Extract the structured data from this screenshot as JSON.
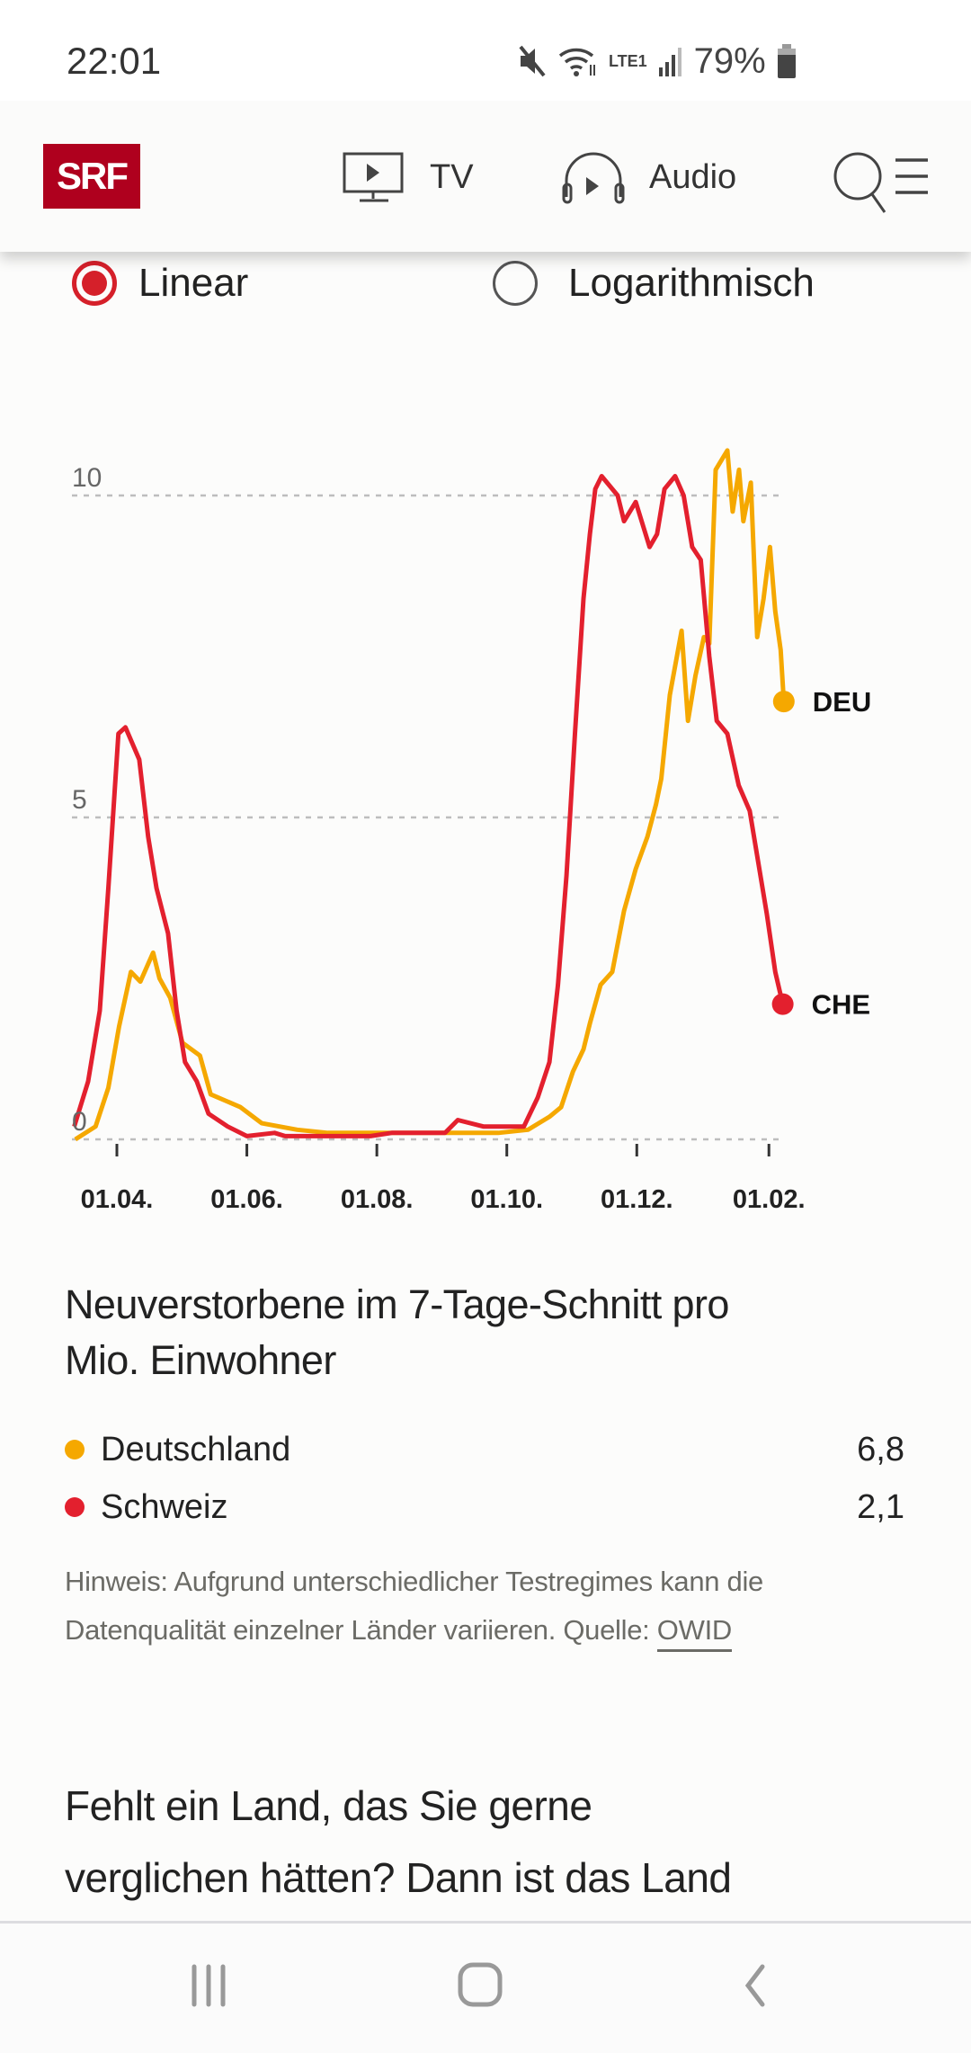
{
  "status_bar": {
    "time": "22:01",
    "battery": "79%",
    "network": "LTE1"
  },
  "header": {
    "logo": "SRF",
    "tv_label": "TV",
    "audio_label": "Audio"
  },
  "scale_options": [
    {
      "label": "Linear",
      "selected": true
    },
    {
      "label": "Logarithmisch",
      "selected": false
    }
  ],
  "chart_data": {
    "type": "line",
    "title": "Neuverstorbene im 7-Tage-Schnitt pro Mio. Einwohner",
    "title_lines": [
      "Neuverstorbene im 7-Tage-Schnitt pro",
      "Mio. Einwohner"
    ],
    "x_unit": "days since 2020-03-01",
    "x_ticks": [
      {
        "day": 31,
        "label": "01.04."
      },
      {
        "day": 92,
        "label": "01.06."
      },
      {
        "day": 153,
        "label": "01.08."
      },
      {
        "day": 214,
        "label": "01.10."
      },
      {
        "day": 275,
        "label": "01.12."
      },
      {
        "day": 337,
        "label": "01.02."
      }
    ],
    "y_ticks": [
      {
        "value": 0,
        "label": "0"
      },
      {
        "value": 5,
        "label": "5"
      },
      {
        "value": 10,
        "label": "10"
      }
    ],
    "ylim": [
      0,
      10.7
    ],
    "grid": true,
    "series": [
      {
        "name": "Deutschland",
        "code": "DEU",
        "color": "#f5a800",
        "latest": "6,8",
        "points": [
          [
            11.5,
            0
          ],
          [
            21,
            0.2
          ],
          [
            27,
            0.8
          ],
          [
            32,
            1.75
          ],
          [
            37.6,
            2.6
          ],
          [
            42,
            2.45
          ],
          [
            48,
            2.9
          ],
          [
            51,
            2.5
          ],
          [
            56,
            2.2
          ],
          [
            61.8,
            1.5
          ],
          [
            70,
            1.3
          ],
          [
            75,
            0.7
          ],
          [
            89,
            0.5
          ],
          [
            99,
            0.25
          ],
          [
            115.6,
            0.15
          ],
          [
            130,
            0.1
          ],
          [
            180,
            0.1
          ],
          [
            210,
            0.1
          ],
          [
            224,
            0.15
          ],
          [
            234,
            0.35
          ],
          [
            239.5,
            0.5
          ],
          [
            245,
            1.05
          ],
          [
            250,
            1.4
          ],
          [
            253,
            1.8
          ],
          [
            258,
            2.4
          ],
          [
            263.5,
            2.6
          ],
          [
            269,
            3.55
          ],
          [
            274.5,
            4.2
          ],
          [
            280,
            4.7
          ],
          [
            284,
            5.2
          ],
          [
            286.5,
            5.6
          ],
          [
            290.5,
            6.9
          ],
          [
            296,
            7.9
          ],
          [
            299,
            6.5
          ],
          [
            302.5,
            7.2
          ],
          [
            306.5,
            7.8
          ],
          [
            309,
            7.7
          ],
          [
            312,
            10.4
          ],
          [
            317.5,
            10.7
          ],
          [
            320,
            9.75
          ],
          [
            323,
            10.4
          ],
          [
            325,
            9.6
          ],
          [
            328.5,
            10.2
          ],
          [
            331.5,
            7.8
          ],
          [
            334.5,
            8.4
          ],
          [
            337.5,
            9.2
          ],
          [
            340,
            8.2
          ],
          [
            342.5,
            7.6
          ],
          [
            344,
            6.8
          ]
        ]
      },
      {
        "name": "Schweiz",
        "code": "CHE",
        "color": "#e3202e",
        "latest": "2,1",
        "points": [
          [
            11,
            0.2
          ],
          [
            17.5,
            0.9
          ],
          [
            23,
            2.0
          ],
          [
            27,
            3.9
          ],
          [
            31.7,
            6.3
          ],
          [
            35,
            6.4
          ],
          [
            41.5,
            5.9
          ],
          [
            45.7,
            4.7
          ],
          [
            49.6,
            3.9
          ],
          [
            55,
            3.2
          ],
          [
            59,
            2.0
          ],
          [
            63,
            1.2
          ],
          [
            68.5,
            0.9
          ],
          [
            74,
            0.4
          ],
          [
            83,
            0.2
          ],
          [
            92,
            0.05
          ],
          [
            105,
            0.1
          ],
          [
            110,
            0.05
          ],
          [
            150,
            0.05
          ],
          [
            160,
            0.1
          ],
          [
            185,
            0.1
          ],
          [
            191,
            0.3
          ],
          [
            203,
            0.2
          ],
          [
            222,
            0.2
          ],
          [
            228.5,
            0.65
          ],
          [
            234,
            1.2
          ],
          [
            238,
            2.4
          ],
          [
            242,
            4.1
          ],
          [
            246,
            6.3
          ],
          [
            250,
            8.4
          ],
          [
            253,
            9.4
          ],
          [
            255.5,
            10.1
          ],
          [
            258.5,
            10.3
          ],
          [
            266,
            10.0
          ],
          [
            269,
            9.6
          ],
          [
            274.5,
            9.9
          ],
          [
            281,
            9.2
          ],
          [
            284.5,
            9.4
          ],
          [
            288,
            10.1
          ],
          [
            293,
            10.3
          ],
          [
            297,
            10.0
          ],
          [
            301,
            9.2
          ],
          [
            305,
            9.0
          ],
          [
            309,
            7.5
          ],
          [
            312.5,
            6.5
          ],
          [
            317.5,
            6.3
          ],
          [
            322.8,
            5.5
          ],
          [
            328,
            5.1
          ],
          [
            332,
            4.3
          ],
          [
            336,
            3.5
          ],
          [
            340,
            2.6
          ],
          [
            343.5,
            2.1
          ]
        ]
      }
    ]
  },
  "legend": [
    {
      "name": "Deutschland",
      "value": "6,8",
      "color": "#f5a800"
    },
    {
      "name": "Schweiz",
      "value": "2,1",
      "color": "#e3202e"
    }
  ],
  "hint": {
    "text": "Hinweis: Aufgrund unterschiedlicher Testregimes kann die Datenqualität einzelner Länder variieren. Quelle: ",
    "source_link": "OWID"
  },
  "paragraph_lines": [
    "Fehlt ein Land, das Sie gerne",
    "verglichen hätten? Dann ist das Land"
  ]
}
